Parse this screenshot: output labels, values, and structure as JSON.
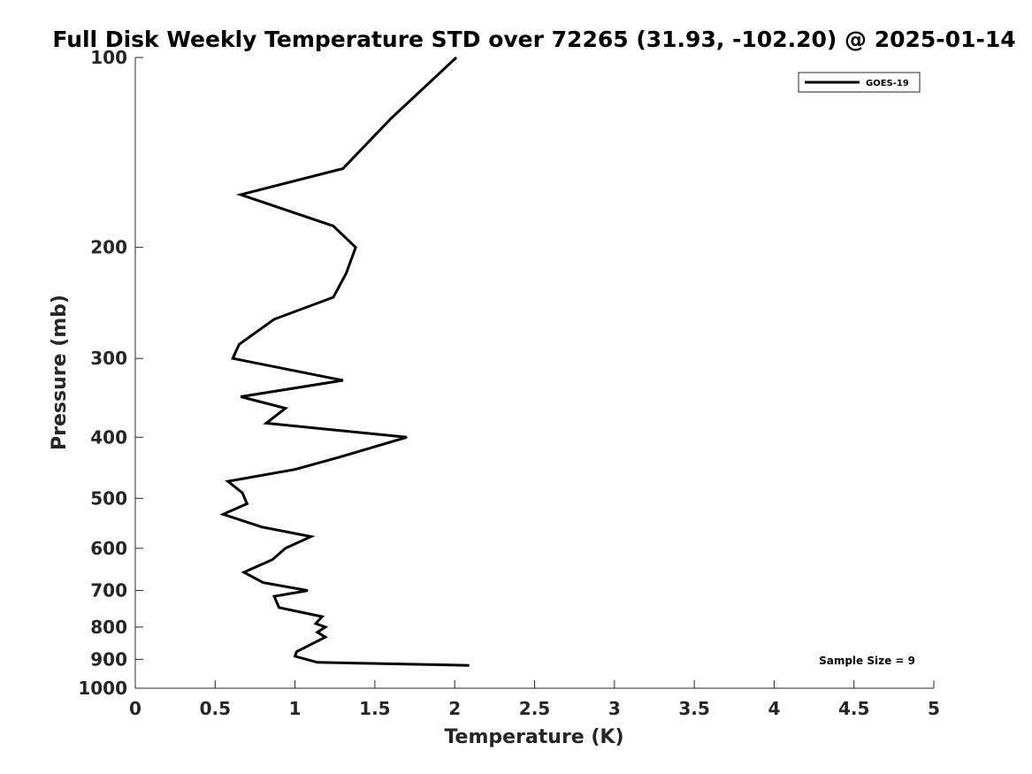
{
  "chart_data": {
    "type": "line",
    "title": "Full Disk Weekly Temperature STD over 72265 (31.93, -102.20) @ 2025-01-14",
    "xlabel": "Temperature (K)",
    "ylabel": "Pressure (mb)",
    "xlim": [
      0,
      5
    ],
    "ylim": [
      100,
      1000
    ],
    "y_scale": "log",
    "y_reversed": true,
    "x_ticks": [
      "0",
      "0.5",
      "1",
      "1.5",
      "2",
      "2.5",
      "3",
      "3.5",
      "4",
      "4.5",
      "5"
    ],
    "x_tick_values": [
      0,
      0.5,
      1,
      1.5,
      2,
      2.5,
      3,
      3.5,
      4,
      4.5,
      5
    ],
    "y_ticks": [
      "100",
      "200",
      "300",
      "400",
      "500",
      "600",
      "700",
      "800",
      "900",
      "1000"
    ],
    "y_tick_values": [
      100,
      200,
      300,
      400,
      500,
      600,
      700,
      800,
      900,
      1000
    ],
    "legend": {
      "position": "top-right",
      "entries": [
        "GOES-19"
      ]
    },
    "annotation": "Sample Size = 9",
    "series": [
      {
        "name": "GOES-19",
        "color": "#000000",
        "x": [
          2.01,
          1.6,
          1.3,
          0.66,
          1.24,
          1.38,
          1.32,
          1.24,
          0.87,
          0.65,
          0.61,
          1.3,
          0.66,
          0.94,
          0.82,
          1.7,
          1.28,
          1.0,
          0.58,
          0.67,
          0.7,
          0.55,
          0.79,
          1.1,
          0.94,
          0.86,
          0.68,
          0.8,
          1.08,
          0.87,
          0.89,
          0.9,
          1.17,
          1.13,
          1.19,
          1.14,
          1.19,
          1.01,
          1.0,
          1.14,
          2.09
        ],
        "y": [
          100,
          125,
          150,
          165,
          185,
          200,
          220,
          240,
          260,
          285,
          300,
          325,
          345,
          360,
          380,
          400,
          430,
          450,
          470,
          490,
          510,
          530,
          555,
          575,
          600,
          625,
          655,
          680,
          700,
          715,
          735,
          745,
          770,
          790,
          800,
          815,
          830,
          875,
          890,
          910,
          920
        ]
      }
    ]
  }
}
